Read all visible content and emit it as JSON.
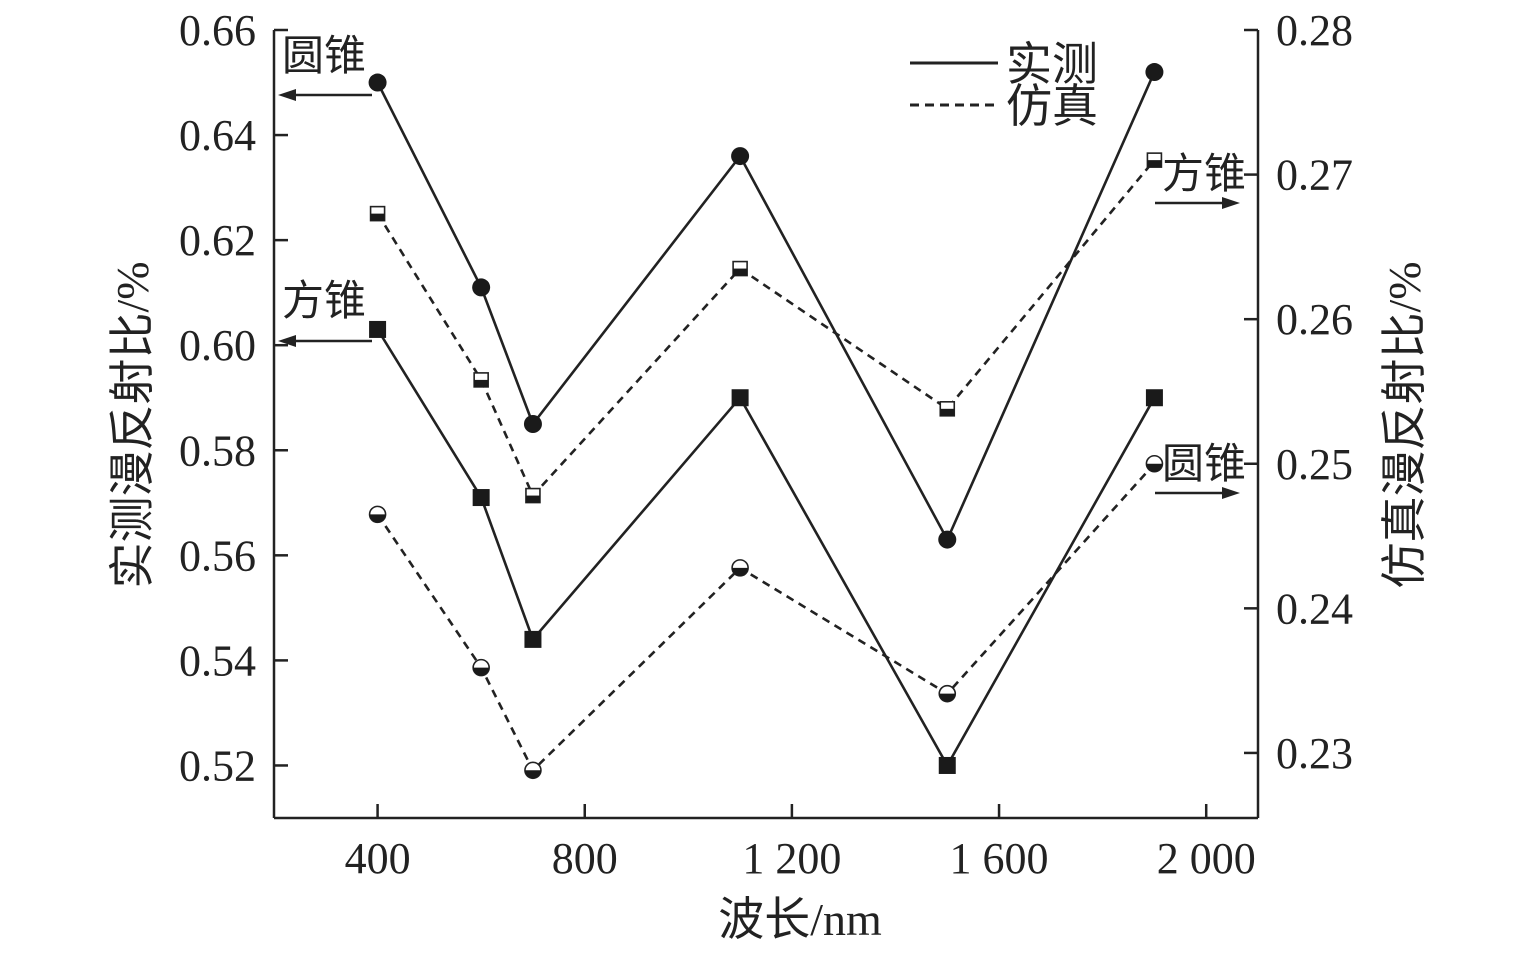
{
  "chart_data": {
    "type": "line",
    "xlabel": "波长/nm",
    "ylabel_left": "实测漫反射比/%",
    "ylabel_right": "仿真漫反射比/%",
    "xlim": [
      200,
      2100
    ],
    "x_ticks": [
      400,
      800,
      1200,
      1600,
      2000
    ],
    "x_tick_labels": [
      "400",
      "800",
      "1 200",
      "1 600",
      "2 000"
    ],
    "ylim_left": [
      0.51,
      0.66
    ],
    "y_ticks_left": [
      0.52,
      0.54,
      0.56,
      0.58,
      0.6,
      0.62,
      0.64,
      0.66
    ],
    "y_tick_labels_left": [
      "0.52",
      "0.54",
      "0.56",
      "0.58",
      "0.60",
      "0.62",
      "0.64",
      "0.66"
    ],
    "ylim_right": [
      0.2255,
      0.28
    ],
    "y_ticks_right": [
      0.23,
      0.24,
      0.25,
      0.26,
      0.27,
      0.28
    ],
    "y_tick_labels_right": [
      "0.23",
      "0.24",
      "0.25",
      "0.26",
      "0.27",
      "0.28"
    ],
    "legend": {
      "placement": "top-center",
      "entries": [
        {
          "label": "实测",
          "line": "solid"
        },
        {
          "label": "仿真",
          "line": "dashed"
        }
      ]
    },
    "series": [
      {
        "group": "圆锥",
        "kind": "measured",
        "axis": "left",
        "line": "solid",
        "marker": "circle",
        "x": [
          400,
          600,
          700,
          1100,
          1500,
          1900
        ],
        "y": [
          0.65,
          0.611,
          0.585,
          0.636,
          0.563,
          0.652
        ]
      },
      {
        "group": "方锥",
        "kind": "measured",
        "axis": "left",
        "line": "solid",
        "marker": "square",
        "x": [
          400,
          600,
          700,
          1100,
          1500,
          1900
        ],
        "y": [
          0.603,
          0.571,
          0.544,
          0.59,
          0.52,
          0.59
        ]
      },
      {
        "group": "方锥",
        "kind": "simulated",
        "axis": "right",
        "line": "dashed",
        "marker": "half-square",
        "x": [
          400,
          600,
          700,
          1100,
          1500,
          1900
        ],
        "y": [
          0.2673,
          0.2558,
          0.2478,
          0.2635,
          0.2538,
          0.271
        ]
      },
      {
        "group": "圆锥",
        "kind": "simulated",
        "axis": "right",
        "line": "dashed",
        "marker": "half-circle",
        "x": [
          400,
          600,
          700,
          1100,
          1500,
          1900
        ],
        "y": [
          0.2465,
          0.2359,
          0.2288,
          0.2428,
          0.2341,
          0.25
        ]
      }
    ],
    "annotations": [
      {
        "text": "圆锥",
        "axis": "left",
        "arrow": "left"
      },
      {
        "text": "方锥",
        "axis": "left",
        "arrow": "left"
      },
      {
        "text": "方锥",
        "axis": "right",
        "arrow": "right"
      },
      {
        "text": "圆锥",
        "axis": "right",
        "arrow": "right"
      }
    ]
  }
}
